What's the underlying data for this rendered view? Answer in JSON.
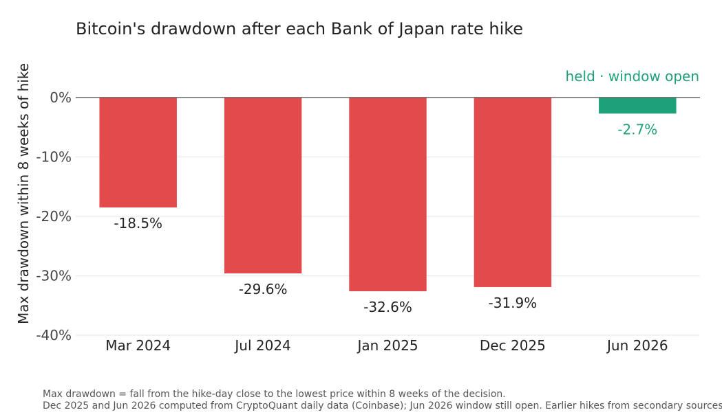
{
  "chart_data": {
    "type": "bar",
    "title": "Bitcoin's drawdown after each Bank of Japan rate hike",
    "xlabel": "",
    "ylabel": "Max drawdown within 8 weeks of hike",
    "categories": [
      "Mar 2024",
      "Jul 2024",
      "Jan 2025",
      "Dec 2025",
      "Jun 2026"
    ],
    "values": [
      -18.5,
      -29.6,
      -32.6,
      -31.9,
      -2.7
    ],
    "value_labels": [
      "-18.5%",
      "-29.6%",
      "-32.6%",
      "-31.9%",
      "-2.7%"
    ],
    "ylim": [
      -40,
      0
    ],
    "yticks": [
      0,
      -10,
      -20,
      -30,
      -40
    ],
    "ytick_labels": [
      "0%",
      "-10%",
      "-20%",
      "-30%",
      "-40%"
    ],
    "grid": true,
    "colors": {
      "drawdown": "#e34a4c",
      "held": "#1ea07a",
      "grid": "#e6e6e6",
      "zero_line": "#444444"
    },
    "bar_colors": [
      "drawdown",
      "drawdown",
      "drawdown",
      "drawdown",
      "held"
    ],
    "annotations": [
      {
        "category": "Jun 2026",
        "text": "held · window open"
      }
    ],
    "footnotes": [
      "Max drawdown = fall from the hike-day close to the lowest price within 8 weeks of the decision.",
      "Dec 2025 and Jun 2026 computed from CryptoQuant daily data (Coinbase); Jun 2026 window still open. Earlier hikes from secondary sources."
    ]
  }
}
